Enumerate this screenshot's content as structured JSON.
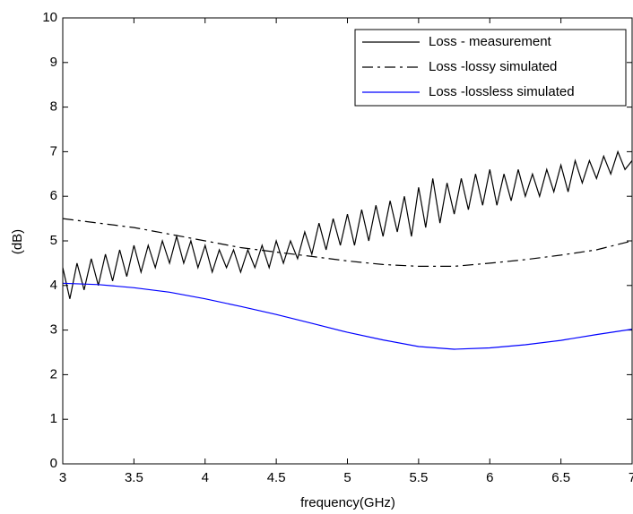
{
  "chart_data": {
    "type": "line",
    "xlabel": "frequency(GHz)",
    "ylabel": "(dB)",
    "xlim": [
      3,
      7
    ],
    "ylim": [
      0,
      10
    ],
    "xticks": [
      3,
      3.5,
      4,
      4.5,
      5,
      5.5,
      6,
      6.5,
      7
    ],
    "yticks": [
      0,
      1,
      2,
      3,
      4,
      5,
      6,
      7,
      8,
      9,
      10
    ],
    "legend": "upper right",
    "series": [
      {
        "name": "Loss - measurement",
        "color": "#000000",
        "linestyle": "solid",
        "x": [
          3.0,
          3.05,
          3.1,
          3.15,
          3.2,
          3.25,
          3.3,
          3.35,
          3.4,
          3.45,
          3.5,
          3.55,
          3.6,
          3.65,
          3.7,
          3.75,
          3.8,
          3.85,
          3.9,
          3.95,
          4.0,
          4.05,
          4.1,
          4.15,
          4.2,
          4.25,
          4.3,
          4.35,
          4.4,
          4.45,
          4.5,
          4.55,
          4.6,
          4.65,
          4.7,
          4.75,
          4.8,
          4.85,
          4.9,
          4.95,
          5.0,
          5.05,
          5.1,
          5.15,
          5.2,
          5.25,
          5.3,
          5.35,
          5.4,
          5.45,
          5.5,
          5.55,
          5.6,
          5.65,
          5.7,
          5.75,
          5.8,
          5.85,
          5.9,
          5.95,
          6.0,
          6.05,
          6.1,
          6.15,
          6.2,
          6.25,
          6.3,
          6.35,
          6.4,
          6.45,
          6.5,
          6.55,
          6.6,
          6.65,
          6.7,
          6.75,
          6.8,
          6.85,
          6.9,
          6.95,
          7.0
        ],
        "values": [
          4.4,
          3.7,
          4.5,
          3.9,
          4.6,
          4.0,
          4.7,
          4.1,
          4.8,
          4.2,
          4.9,
          4.3,
          4.9,
          4.4,
          5.0,
          4.5,
          5.1,
          4.5,
          5.0,
          4.4,
          4.9,
          4.3,
          4.8,
          4.4,
          4.8,
          4.3,
          4.8,
          4.4,
          4.9,
          4.4,
          5.0,
          4.5,
          5.0,
          4.6,
          5.2,
          4.7,
          5.4,
          4.8,
          5.5,
          4.9,
          5.6,
          4.9,
          5.7,
          5.0,
          5.8,
          5.1,
          5.9,
          5.2,
          6.0,
          5.1,
          6.2,
          5.3,
          6.4,
          5.4,
          6.3,
          5.6,
          6.4,
          5.7,
          6.5,
          5.8,
          6.6,
          5.8,
          6.5,
          5.9,
          6.6,
          6.0,
          6.5,
          6.0,
          6.6,
          6.1,
          6.7,
          6.1,
          6.8,
          6.3,
          6.8,
          6.4,
          6.9,
          6.5,
          7.0,
          6.6,
          6.8
        ]
      },
      {
        "name": "Loss -lossy simulated",
        "color": "#000000",
        "linestyle": "dashdot",
        "x": [
          3,
          3.25,
          3.5,
          3.75,
          4,
          4.25,
          4.5,
          4.75,
          5,
          5.25,
          5.5,
          5.75,
          6,
          6.25,
          6.5,
          6.75,
          7
        ],
        "values": [
          5.5,
          5.4,
          5.3,
          5.15,
          5.0,
          4.85,
          4.75,
          4.65,
          4.55,
          4.47,
          4.43,
          4.43,
          4.5,
          4.58,
          4.68,
          4.8,
          5.0
        ]
      },
      {
        "name": "Loss -lossless simulated",
        "color": "#0000ff",
        "linestyle": "solid",
        "x": [
          3,
          3.25,
          3.5,
          3.75,
          4,
          4.25,
          4.5,
          4.75,
          5,
          5.25,
          5.5,
          5.75,
          6,
          6.25,
          6.5,
          6.75,
          7
        ],
        "values": [
          4.05,
          4.02,
          3.95,
          3.85,
          3.7,
          3.53,
          3.35,
          3.15,
          2.95,
          2.78,
          2.63,
          2.57,
          2.6,
          2.67,
          2.77,
          2.9,
          3.02
        ]
      }
    ]
  }
}
